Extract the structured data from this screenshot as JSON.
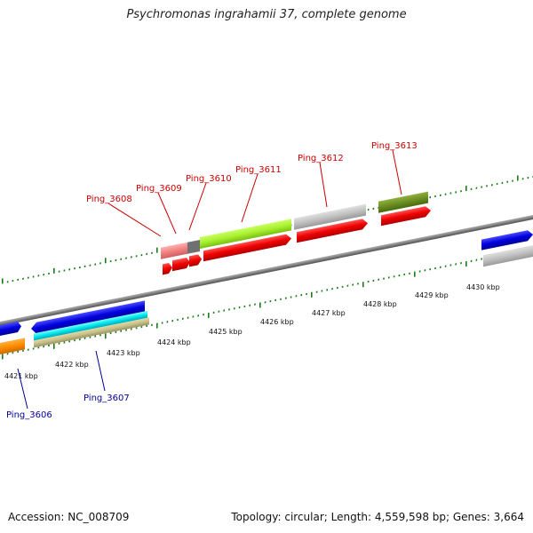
{
  "title": "Psychromonas ingrahamii 37, complete genome",
  "footer": {
    "accession": "Accession: NC_008709",
    "summary": "Topology: circular; Length: 4,559,598 bp; Genes: 3,664"
  },
  "ruler": {
    "ticks": [
      {
        "label": "4421 kbp"
      },
      {
        "label": "4422 kbp"
      },
      {
        "label": "4423 kbp"
      },
      {
        "label": "4424 kbp"
      },
      {
        "label": "4425 kbp"
      },
      {
        "label": "4426 kbp"
      },
      {
        "label": "4427 kbp"
      },
      {
        "label": "4428 kbp"
      },
      {
        "label": "4429 kbp"
      },
      {
        "label": "4430 kbp"
      }
    ]
  },
  "gene_labels": {
    "top": [
      "Ping_3608",
      "Ping_3609",
      "Ping_3610",
      "Ping_3611",
      "Ping_3612",
      "Ping_3613"
    ],
    "bottom": [
      "Ping_3606",
      "Ping_3607"
    ]
  },
  "colors": {
    "top_label": "#cc0000",
    "bottom_label": "#000099",
    "tick": "#1a7a1a",
    "backbone": "#808080",
    "cds": "#ee0000",
    "blue": "#0000dd",
    "cyan": "#00e5ee",
    "khaki": "#c8c08a",
    "lime": "#a8f030",
    "olive": "#6b8e23",
    "grey": "#c0c0c0",
    "orange": "#ff8c00",
    "pink": "#f08080"
  }
}
